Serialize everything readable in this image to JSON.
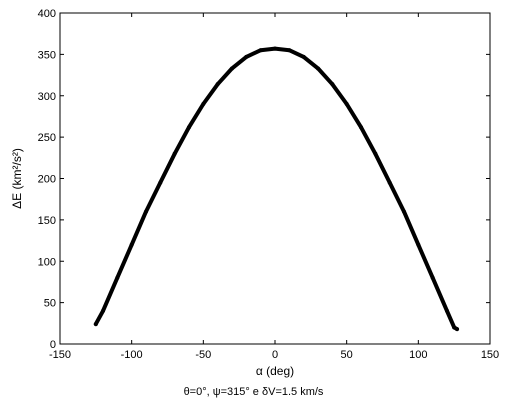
{
  "chart_data": {
    "type": "line",
    "xlabel": "α (deg)",
    "ylabel": "ΔE (km²/s²)",
    "caption": "θ=0°, ψ=315° e δV=1.5 km/s",
    "xlim": [
      -150,
      150
    ],
    "ylim": [
      0,
      400
    ],
    "xticks": [
      -150,
      -100,
      -50,
      0,
      50,
      100,
      150
    ],
    "yticks": [
      0,
      50,
      100,
      150,
      200,
      250,
      300,
      350,
      400
    ],
    "grid": false,
    "series": [
      {
        "color": "#000000",
        "x": [
          -125,
          -120,
          -110,
          -100,
          -90,
          -80,
          -70,
          -60,
          -50,
          -40,
          -30,
          -20,
          -10,
          0,
          10,
          20,
          30,
          40,
          50,
          60,
          70,
          80,
          90,
          100,
          110,
          120,
          125,
          127
        ],
        "y": [
          24,
          40,
          80,
          120,
          160,
          195,
          230,
          262,
          290,
          314,
          333,
          347,
          355,
          357,
          355,
          347,
          333,
          314,
          290,
          262,
          230,
          195,
          160,
          120,
          80,
          40,
          20,
          18
        ]
      }
    ]
  }
}
